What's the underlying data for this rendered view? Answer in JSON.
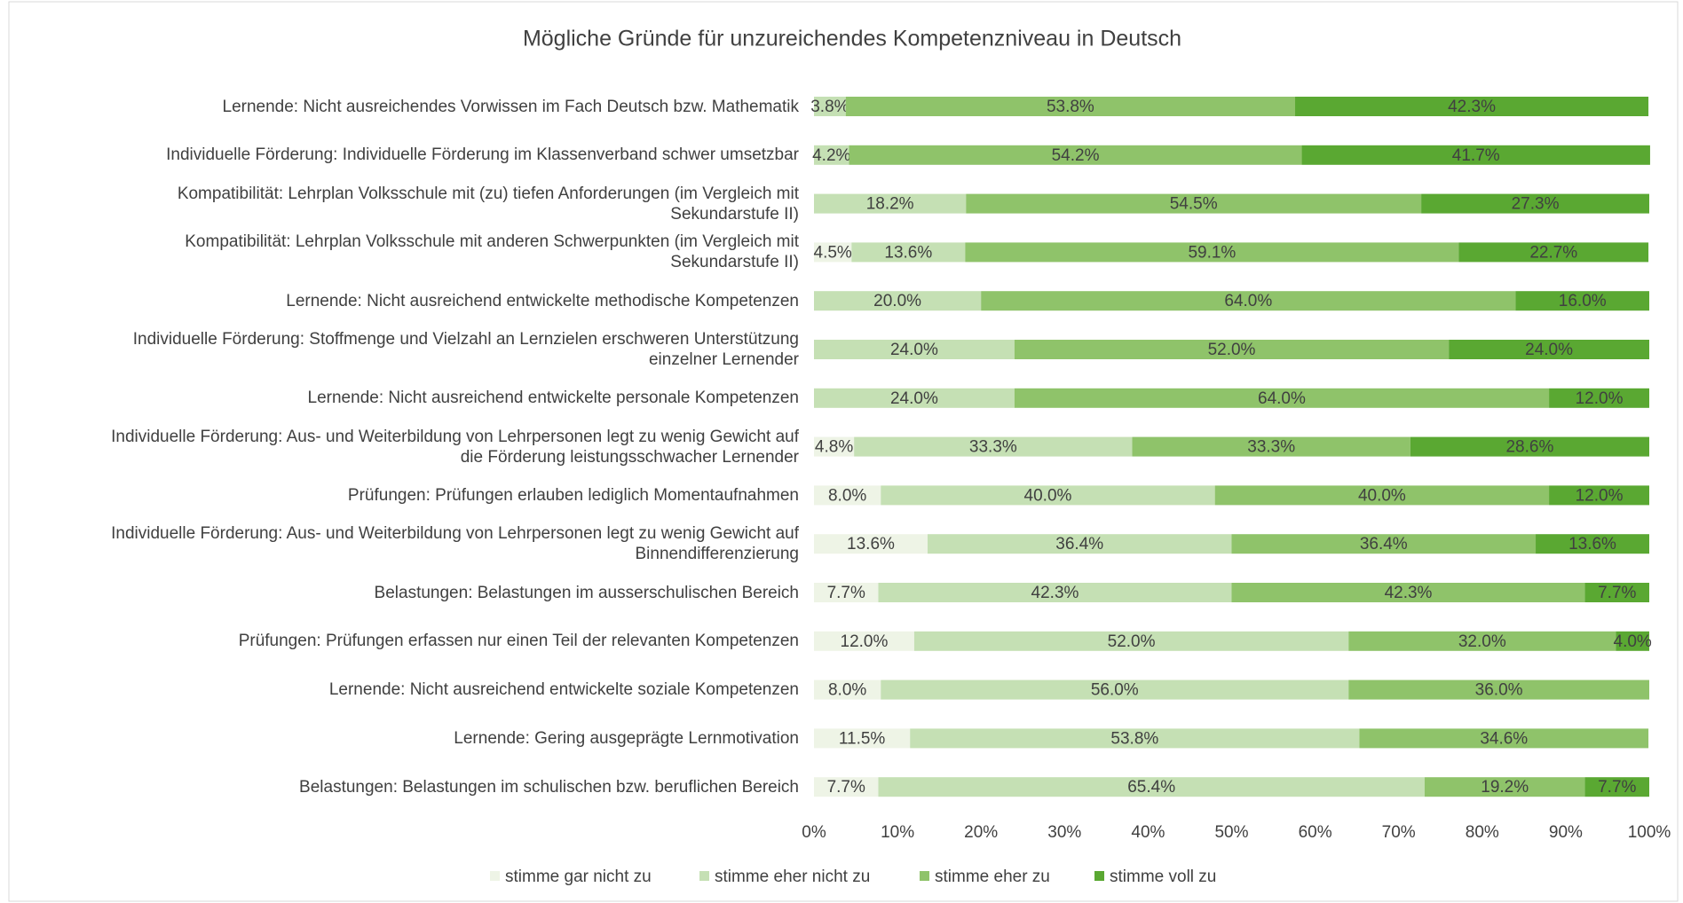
{
  "chart_data": {
    "type": "stacked_bar_horizontal",
    "title": "Mögliche Gründe für unzureichendes Kompetenzniveau in Deutsch",
    "categories": [
      "Lernende: Nicht ausreichendes Vorwissen im Fach Deutsch bzw. Mathematik",
      "Individuelle Förderung: Individuelle Förderung im Klassenverband schwer umsetzbar",
      "Kompatibilität: Lehrplan Volksschule mit (zu) tiefen Anforderungen (im Vergleich mit\nSekundarstufe II)",
      "Kompatibilität: Lehrplan Volksschule mit anderen Schwerpunkten (im Vergleich mit\nSekundarstufe II)",
      "Lernende: Nicht ausreichend entwickelte methodische Kompetenzen",
      "Individuelle Förderung: Stoffmenge und Vielzahl an Lernzielen erschweren Unterstützung\neinzelner Lernender",
      "Lernende: Nicht ausreichend entwickelte personale Kompetenzen",
      "Individuelle Förderung: Aus- und Weiterbildung von Lehrpersonen legt zu wenig Gewicht auf\ndie Förderung leistungsschwacher Lernender",
      "Prüfungen: Prüfungen erlauben lediglich Momentaufnahmen",
      "Individuelle Förderung: Aus- und Weiterbildung von Lehrpersonen legt zu wenig Gewicht auf\nBinnendifferenzierung",
      "Belastungen: Belastungen im ausserschulischen Bereich",
      "Prüfungen: Prüfungen erfassen nur einen Teil der relevanten Kompetenzen",
      "Lernende: Nicht ausreichend entwickelte soziale Kompetenzen",
      "Lernende: Gering ausgeprägte Lernmotivation",
      "Belastungen: Belastungen im schulischen bzw. beruflichen Bereich"
    ],
    "series": [
      {
        "name": "stimme gar nicht zu",
        "color": "#eef4e6",
        "values": [
          null,
          null,
          null,
          4.5,
          null,
          null,
          null,
          4.8,
          8.0,
          13.6,
          7.7,
          12.0,
          8.0,
          11.5,
          7.7
        ],
        "value_labels": [
          null,
          null,
          null,
          "4.5%",
          null,
          null,
          null,
          "4.8%",
          "8.0%",
          "13.6%",
          "7.7%",
          "12.0%",
          "8.0%",
          "11.5%",
          "7.7%"
        ]
      },
      {
        "name": "stimme eher nicht zu",
        "color": "#c5e0b4",
        "values": [
          3.8,
          4.2,
          18.2,
          13.6,
          20.0,
          24.0,
          24.0,
          33.3,
          40.0,
          36.4,
          42.3,
          52.0,
          56.0,
          53.8,
          65.4
        ],
        "value_labels": [
          "3.8%",
          "4.2%",
          "18.2%",
          "13.6%",
          "20.0%",
          "24.0%",
          "24.0%",
          "33.3%",
          "40.0%",
          "36.4%",
          "42.3%",
          "52.0%",
          "56.0%",
          "53.8%",
          "65.4%"
        ]
      },
      {
        "name": "stimme eher zu",
        "color": "#8fc36a",
        "values": [
          53.8,
          54.2,
          54.5,
          59.1,
          64.0,
          52.0,
          64.0,
          33.3,
          40.0,
          36.4,
          42.3,
          32.0,
          36.0,
          34.6,
          19.2
        ],
        "value_labels": [
          "53.8%",
          "54.2%",
          "54.5%",
          "59.1%",
          "64.0%",
          "52.0%",
          "64.0%",
          "33.3%",
          "40.0%",
          "36.4%",
          "42.3%",
          "32.0%",
          "36.0%",
          "34.6%",
          "19.2%"
        ]
      },
      {
        "name": "stimme voll zu",
        "color": "#5aa832",
        "values": [
          42.3,
          41.7,
          27.3,
          22.7,
          16.0,
          24.0,
          12.0,
          28.6,
          12.0,
          13.6,
          7.7,
          4.0,
          null,
          null,
          7.7
        ],
        "value_labels": [
          "42.3%",
          "41.7%",
          "27.3%",
          "22.7%",
          "16.0%",
          "24.0%",
          "12.0%",
          "28.6%",
          "12.0%",
          "13.6%",
          "7.7%",
          "4.0%",
          null,
          null,
          "7.7%"
        ]
      }
    ],
    "xlim": [
      0,
      100
    ],
    "xticks": [
      {
        "value": 0,
        "label": "0%"
      },
      {
        "value": 10,
        "label": "10%"
      },
      {
        "value": 20,
        "label": "20%"
      },
      {
        "value": 30,
        "label": "30%"
      },
      {
        "value": 40,
        "label": "40%"
      },
      {
        "value": 50,
        "label": "50%"
      },
      {
        "value": 60,
        "label": "60%"
      },
      {
        "value": 70,
        "label": "70%"
      },
      {
        "value": 80,
        "label": "80%"
      },
      {
        "value": 90,
        "label": "90%"
      },
      {
        "value": 100,
        "label": "100%"
      }
    ],
    "legend": "bottom"
  }
}
